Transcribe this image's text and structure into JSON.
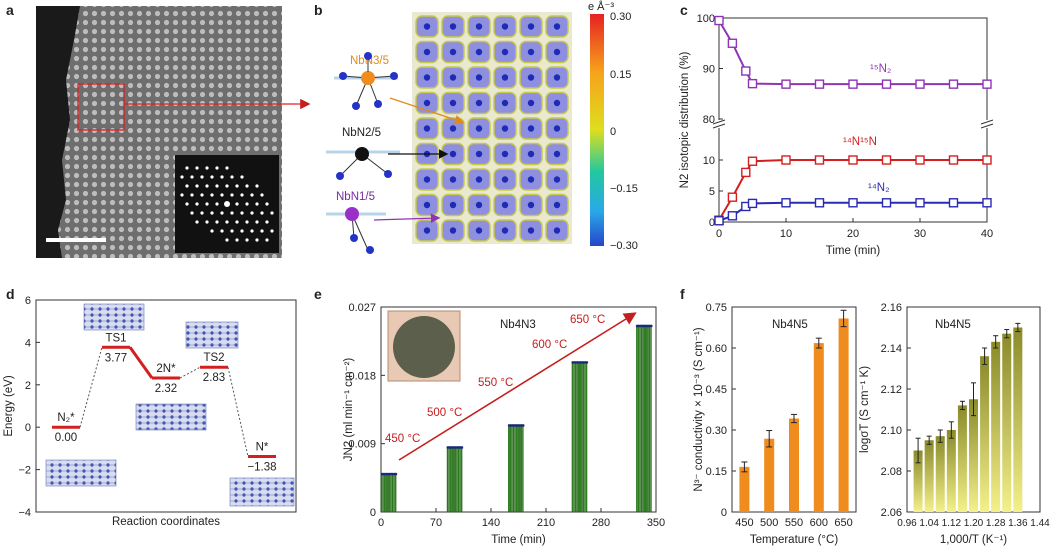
{
  "panels": {
    "a": "a",
    "b": "b",
    "c": "c",
    "d": "d",
    "e": "e",
    "f": "f"
  },
  "colors": {
    "purple": "#8e35b5",
    "red": "#d22020",
    "blue": "#2a2ab0",
    "green": "#2f8a1e",
    "orange": "#f08c1e",
    "olive": "#c9c447",
    "arrow_red": "#c41e1e"
  },
  "panel_b": {
    "colorbar_unit": "e Å⁻³",
    "colorbar_ticks": [
      "0.30",
      "0.15",
      "0",
      "−0.15",
      "−0.30"
    ],
    "labels": {
      "nbn35": "NbN3/5",
      "nbn25": "NbN2/5",
      "nbn15": "NbN1/5"
    }
  },
  "chart_data": [
    {
      "id": "c",
      "type": "line",
      "xlabel": "Time (min)",
      "ylabel": "N2 isotopic distribution (%)",
      "xlim": [
        0,
        40
      ],
      "ylim_upper": [
        80,
        100
      ],
      "ylim_lower": [
        0,
        15
      ],
      "xticks": [
        "0",
        "10",
        "20",
        "30",
        "40"
      ],
      "yticks_upper": [
        "80",
        "90",
        "100"
      ],
      "yticks_lower": [
        "0",
        "5",
        "10"
      ],
      "series": [
        {
          "name": "15N2",
          "label": "¹⁵N₂",
          "x": [
            0,
            2,
            4,
            5,
            10,
            15,
            20,
            25,
            30,
            35,
            40
          ],
          "values": [
            99.5,
            95,
            89.5,
            87,
            86.9,
            86.9,
            86.9,
            86.9,
            86.9,
            86.9,
            86.9
          ]
        },
        {
          "name": "14N15N",
          "label": "¹⁴N¹⁵N",
          "x": [
            0,
            2,
            4,
            5,
            10,
            15,
            20,
            25,
            30,
            35,
            40
          ],
          "values": [
            0.3,
            4,
            8,
            9.8,
            10,
            10,
            10,
            10,
            10,
            10,
            10
          ]
        },
        {
          "name": "14N2",
          "label": "¹⁴N₂",
          "x": [
            0,
            2,
            4,
            5,
            10,
            15,
            20,
            25,
            30,
            35,
            40
          ],
          "values": [
            0.2,
            1,
            2.5,
            3,
            3.1,
            3.1,
            3.1,
            3.1,
            3.1,
            3.1,
            3.1
          ]
        }
      ]
    },
    {
      "id": "d",
      "type": "line",
      "xlabel": "Reaction coordinates",
      "ylabel": "Energy (eV)",
      "ylim": [
        -4,
        6
      ],
      "yticks": [
        "6",
        "4",
        "2",
        "0",
        "−2",
        "−4"
      ],
      "states": [
        {
          "name": "N2*",
          "label": "N₂*",
          "value": 0.0,
          "value_label": "0.00"
        },
        {
          "name": "TS1",
          "label": "TS1",
          "value": 3.77,
          "value_label": "3.77"
        },
        {
          "name": "2N*",
          "label": "2N*",
          "value": 2.32,
          "value_label": "2.32"
        },
        {
          "name": "TS2",
          "label": "TS2",
          "value": 2.83,
          "value_label": "2.83"
        },
        {
          "name": "N*",
          "label": "N*",
          "value": -1.38,
          "value_label": "−1.38"
        }
      ]
    },
    {
      "id": "e",
      "type": "bar",
      "xlabel": "Time (min)",
      "ylabel": "JN2 (ml min⁻¹ cm⁻²)",
      "xlim": [
        0,
        350
      ],
      "ylim": [
        0,
        0.027
      ],
      "xticks": [
        "0",
        "70",
        "140",
        "210",
        "280",
        "350"
      ],
      "yticks": [
        "0",
        "0.009",
        "0.018",
        "0.027"
      ],
      "material": "Nb4N3",
      "groups": [
        {
          "temperature": "450 °C",
          "time_start": 0,
          "time_end": 20,
          "value": 0.005
        },
        {
          "temperature": "500 °C",
          "time_start": 84,
          "time_end": 104,
          "value": 0.0085
        },
        {
          "temperature": "550 °C",
          "time_start": 162,
          "time_end": 182,
          "value": 0.0114
        },
        {
          "temperature": "600 °C",
          "time_start": 243,
          "time_end": 263,
          "value": 0.0197
        },
        {
          "temperature": "650 °C",
          "time_start": 325,
          "time_end": 345,
          "value": 0.0245
        }
      ]
    },
    {
      "id": "f1",
      "type": "bar",
      "xlabel": "Temperature (°C)",
      "ylabel": "N³⁻ conductivity × 10⁻³ (S cm⁻¹)",
      "material": "Nb4N5",
      "categories": [
        "450",
        "500",
        "550",
        "600",
        "650"
      ],
      "values": [
        0.165,
        0.268,
        0.342,
        0.618,
        0.708
      ],
      "errors": [
        0.018,
        0.03,
        0.015,
        0.018,
        0.03
      ],
      "ylim": [
        0,
        0.75
      ],
      "yticks": [
        "0",
        "0.15",
        "0.30",
        "0.45",
        "0.60",
        "0.75"
      ]
    },
    {
      "id": "f2",
      "type": "bar",
      "xlabel": "1,000/T (K⁻¹)",
      "ylabel": "logσT (S cm⁻¹ K)",
      "material": "Nb4N5",
      "x": [
        1.0,
        1.04,
        1.08,
        1.12,
        1.16,
        1.2,
        1.24,
        1.28,
        1.32,
        1.36
      ],
      "values": [
        2.09,
        2.095,
        2.097,
        2.1,
        2.112,
        2.115,
        2.136,
        2.143,
        2.147,
        2.15
      ],
      "errors": [
        0.006,
        0.002,
        0.003,
        0.004,
        0.002,
        0.008,
        0.004,
        0.003,
        0.002,
        0.002
      ],
      "xlim": [
        0.96,
        1.44
      ],
      "ylim": [
        2.06,
        2.16
      ],
      "xticks": [
        "0.96",
        "1.04",
        "1.12",
        "1.20",
        "1.28",
        "1.36",
        "1.44"
      ],
      "yticks": [
        "2.06",
        "2.08",
        "2.10",
        "2.12",
        "2.14",
        "2.16"
      ]
    }
  ]
}
